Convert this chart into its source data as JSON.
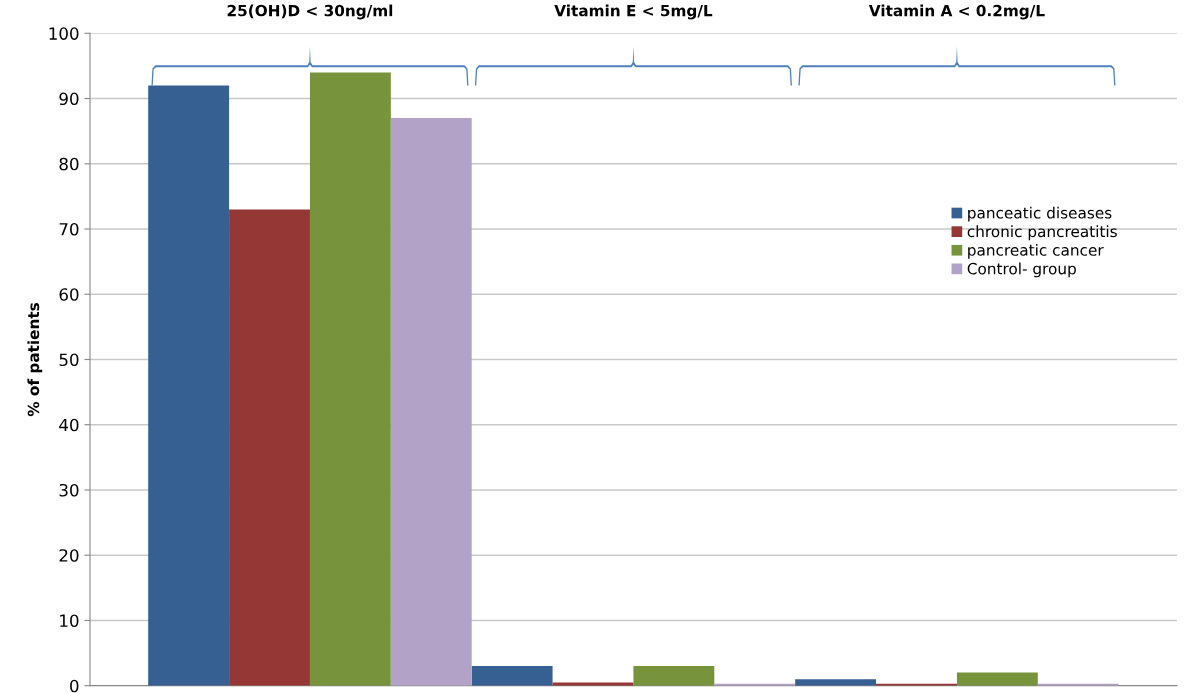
{
  "chart_data": {
    "type": "bar",
    "ylabel": "% of patients",
    "categories": [
      "25(OH)D < 30ng/ml",
      "Vitamin E < 5mg/L",
      "Vitamin A < 0.2mg/L"
    ],
    "series": [
      {
        "name": "panceatic diseases",
        "color": "#365f92",
        "values": [
          92,
          3,
          1
        ]
      },
      {
        "name": "chronic pancreatitis",
        "color": "#953735",
        "values": [
          73,
          0.5,
          0.3
        ]
      },
      {
        "name": "pancreatic cancer",
        "color": "#77933c",
        "values": [
          94,
          3,
          2
        ]
      },
      {
        "name": "Control- group",
        "color": "#b3a2c7",
        "values": [
          87,
          0.3,
          0.3
        ]
      }
    ],
    "ylim": [
      0,
      100
    ],
    "yticks": [
      0,
      10,
      20,
      30,
      40,
      50,
      60,
      70,
      80,
      90,
      100
    ],
    "grid": "y",
    "legend": "right"
  }
}
